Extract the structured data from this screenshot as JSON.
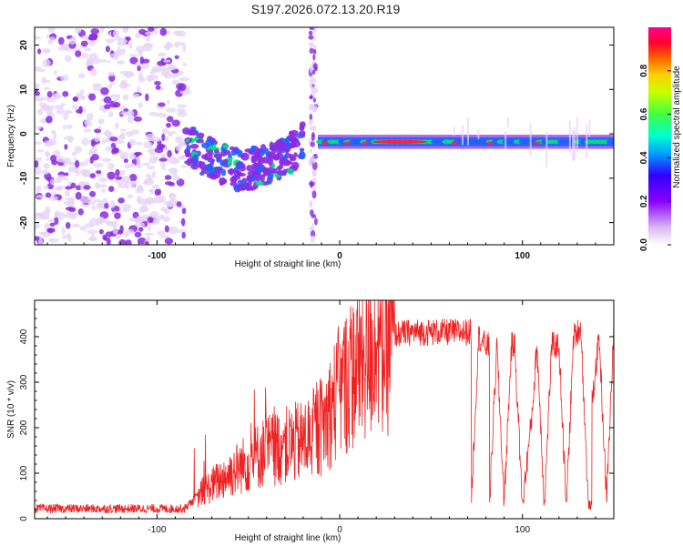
{
  "title": "S197.2026.072.13.20.R19",
  "chart_data": [
    {
      "type": "heatmap",
      "xlabel": "Height of straight line (km)",
      "ylabel": "Frequency (Hz)",
      "xlim": [
        -167,
        150
      ],
      "ylim": [
        -25,
        24
      ],
      "xticks": [
        -100,
        0,
        100
      ],
      "yticks": [
        -20,
        -10,
        0,
        10,
        20
      ],
      "colorbar": {
        "label": "Normalized spectral amplitude",
        "range": [
          0,
          1
        ],
        "ticks": [
          "0.0",
          "0.2",
          "0.4",
          "0.6",
          "0.8"
        ],
        "tick_values": [
          0,
          0.2,
          0.4,
          0.6,
          0.8
        ]
      },
      "colors": {
        "low": "#e6d4f7",
        "mid_low": "#8a2be2",
        "mid": "#2060ff",
        "mid_high": "#00e080",
        "high": "#ff2040"
      },
      "regions": [
        {
          "name": "noise",
          "x": [
            -167,
            -84
          ],
          "freq": [
            -25,
            24
          ],
          "amp": 0.18
        },
        {
          "name": "transition",
          "x": [
            -84,
            -20
          ],
          "freq": [
            -13,
            3
          ],
          "amp": 0.35
        },
        {
          "name": "spike",
          "x": [
            -16,
            -13
          ],
          "freq": [
            -25,
            24
          ],
          "amp": 0.1
        },
        {
          "name": "carrier",
          "x": [
            -12,
            150
          ],
          "freq": [
            -1.8,
            -1.8
          ],
          "amp": 0.9
        }
      ]
    },
    {
      "type": "line",
      "xlabel": "Height of straight line (km)",
      "ylabel": "SNR (10 * v/v)",
      "xlim": [
        -167,
        150
      ],
      "ylim": [
        0,
        480
      ],
      "xticks": [
        -100,
        0,
        100
      ],
      "yticks": [
        0,
        100,
        200,
        300,
        400
      ],
      "color": "#ee2222",
      "envelope": {
        "x": [
          -167,
          -100,
          -85,
          -75,
          -60,
          -40,
          -20,
          -10,
          0,
          10,
          20,
          30,
          40,
          60,
          70,
          72,
          76,
          80,
          82,
          86,
          90,
          94,
          96,
          100,
          105,
          108,
          112,
          116,
          120,
          124,
          128,
          132,
          136,
          138,
          142,
          146,
          150
        ],
        "y": [
          22,
          22,
          22,
          60,
          100,
          150,
          170,
          200,
          280,
          340,
          380,
          405,
          410,
          410,
          410,
          40,
          400,
          380,
          35,
          380,
          35,
          380,
          360,
          30,
          220,
          380,
          30,
          380,
          380,
          25,
          400,
          420,
          30,
          250,
          400,
          40,
          410
        ]
      }
    }
  ]
}
